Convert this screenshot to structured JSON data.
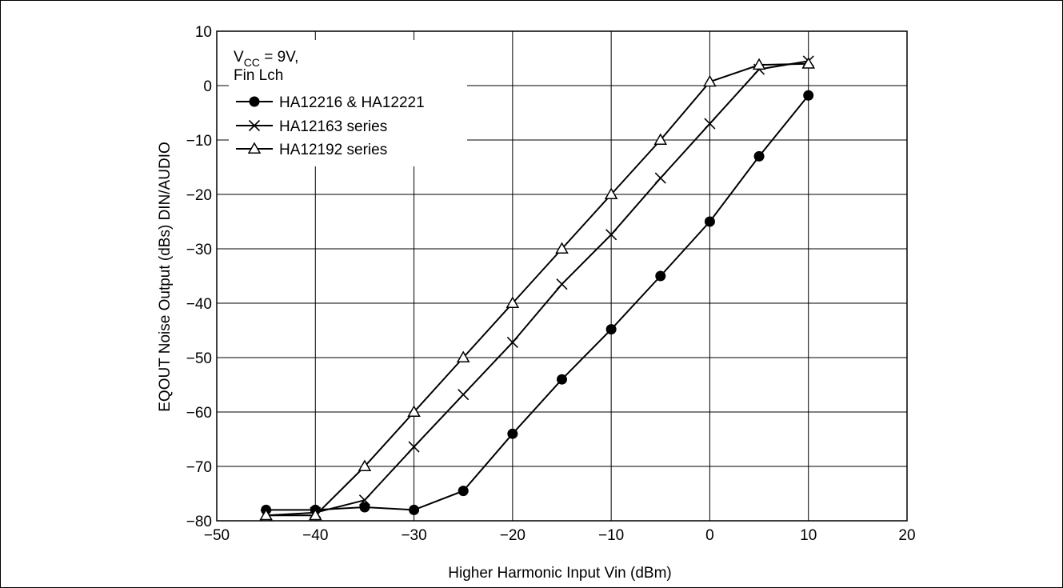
{
  "chart_data": {
    "type": "line",
    "xlabel": "Higher Harmonic Input  Vin  (dBm)",
    "ylabel": "EQOUT Noise Output  (dBs)  DIN/AUDIO",
    "xlim": [
      -50,
      20
    ],
    "ylim": [
      -80,
      10
    ],
    "xticks": [
      -50,
      -40,
      -30,
      -20,
      -10,
      0,
      10,
      20
    ],
    "yticks": [
      10,
      0,
      -10,
      -20,
      -30,
      -40,
      -50,
      -60,
      -70,
      -80
    ],
    "xtick_labels": [
      "−50",
      "−40",
      "−30",
      "−20",
      "−10",
      "0",
      "10",
      "20"
    ],
    "ytick_labels": [
      "10",
      "0",
      "−10",
      "−20",
      "−30",
      "−40",
      "−50",
      "−60",
      "−70",
      "−80"
    ],
    "grid": true,
    "annotation": {
      "line1_main": "V",
      "line1_sub": "CC",
      "line1_rest": " = 9V,",
      "line2": "Fin Lch"
    },
    "legend_position": "top-left",
    "series": [
      {
        "name": "HA12216 & HA12221",
        "marker": "filled-circle",
        "x": [
          -45,
          -40,
          -35,
          -30,
          -25,
          -20,
          -15,
          -10,
          -5,
          0,
          5,
          10
        ],
        "y": [
          -78,
          -78,
          -77.5,
          -78,
          -74.5,
          -64,
          -54,
          -44.8,
          -35,
          -25,
          -13,
          -1.8
        ]
      },
      {
        "name": "HA12163 series",
        "marker": "x",
        "x": [
          -45,
          -40,
          -35,
          -30,
          -25,
          -20,
          -15,
          -10,
          -5,
          0,
          5,
          10
        ],
        "y": [
          -79,
          -78.5,
          -76.2,
          -66.4,
          -56.8,
          -47.2,
          -36.5,
          -27.4,
          -17,
          -7,
          3,
          4.5
        ]
      },
      {
        "name": "HA12192 series",
        "marker": "open-triangle",
        "x": [
          -45,
          -40,
          -35,
          -30,
          -25,
          -20,
          -15,
          -10,
          -5,
          0,
          5,
          10
        ],
        "y": [
          -79,
          -79,
          -70,
          -60,
          -50,
          -40,
          -30,
          -20,
          -10,
          0.7,
          3.8,
          4
        ]
      }
    ]
  }
}
